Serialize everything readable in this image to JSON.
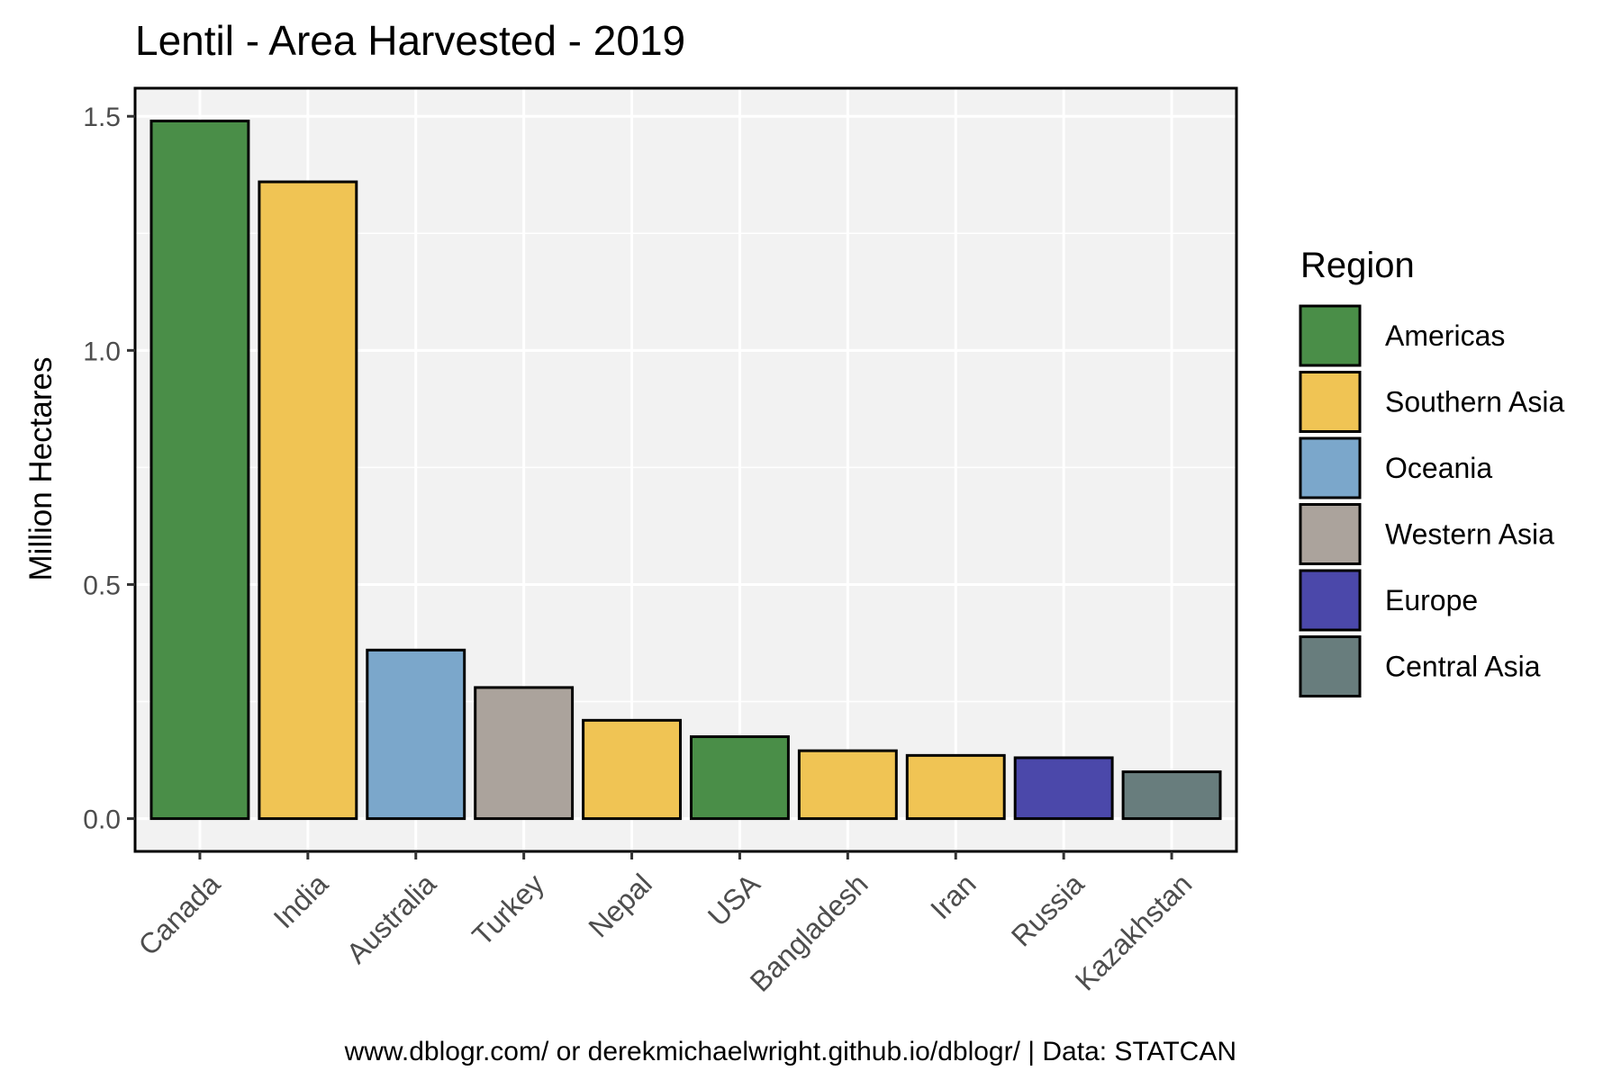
{
  "chart_data": {
    "type": "bar",
    "title": "Lentil - Area Harvested - 2019",
    "xlabel": "",
    "ylabel": "Million Hectares",
    "caption": "www.dblogr.com/ or derekmichaelwright.github.io/dblogr/ | Data: STATCAN",
    "ylim": [
      -0.07,
      1.56
    ],
    "yticks": [
      0.0,
      0.5,
      1.0,
      1.5
    ],
    "ytick_labels": [
      "0.0",
      "0.5",
      "1.0",
      "1.5"
    ],
    "grid": true,
    "legend": {
      "title": "Region",
      "position": "right",
      "items": [
        {
          "label": "Americas",
          "color": "#4a8e48"
        },
        {
          "label": "Southern Asia",
          "color": "#f0c454"
        },
        {
          "label": "Oceania",
          "color": "#7ba7cb"
        },
        {
          "label": "Western Asia",
          "color": "#aba39c"
        },
        {
          "label": "Europe",
          "color": "#4b48aa"
        },
        {
          "label": "Central Asia",
          "color": "#687d7d"
        }
      ]
    },
    "categories": [
      "Canada",
      "India",
      "Australia",
      "Turkey",
      "Nepal",
      "USA",
      "Bangladesh",
      "Iran",
      "Russia",
      "Kazakhstan"
    ],
    "values": [
      1.49,
      1.36,
      0.36,
      0.28,
      0.21,
      0.175,
      0.145,
      0.135,
      0.13,
      0.1
    ],
    "regions": [
      "Americas",
      "Southern Asia",
      "Oceania",
      "Western Asia",
      "Southern Asia",
      "Americas",
      "Southern Asia",
      "Southern Asia",
      "Europe",
      "Central Asia"
    ],
    "colors": {
      "panel_background": "#f2f2f2",
      "gridline": "#ffffff",
      "bar_outline": "#000000",
      "axis_text": "#4d4d4d"
    }
  }
}
